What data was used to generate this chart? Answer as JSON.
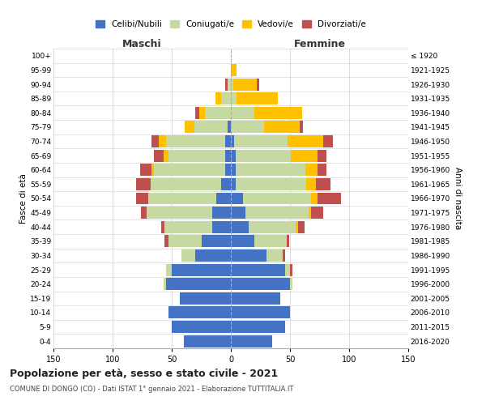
{
  "age_groups": [
    "0-4",
    "5-9",
    "10-14",
    "15-19",
    "20-24",
    "25-29",
    "30-34",
    "35-39",
    "40-44",
    "45-49",
    "50-54",
    "55-59",
    "60-64",
    "65-69",
    "70-74",
    "75-79",
    "80-84",
    "85-89",
    "90-94",
    "95-99",
    "100+"
  ],
  "birth_years": [
    "2016-2020",
    "2011-2015",
    "2006-2010",
    "2001-2005",
    "1996-2000",
    "1991-1995",
    "1986-1990",
    "1981-1985",
    "1976-1980",
    "1971-1975",
    "1966-1970",
    "1961-1965",
    "1956-1960",
    "1951-1955",
    "1946-1950",
    "1941-1945",
    "1936-1940",
    "1931-1935",
    "1926-1930",
    "1921-1925",
    "≤ 1920"
  ],
  "maschi": {
    "celibi": [
      40,
      50,
      53,
      43,
      55,
      50,
      30,
      25,
      16,
      16,
      12,
      8,
      5,
      5,
      5,
      3,
      0,
      0,
      0,
      0,
      0
    ],
    "coniugati": [
      0,
      0,
      0,
      0,
      2,
      5,
      12,
      28,
      40,
      55,
      58,
      60,
      60,
      48,
      50,
      28,
      22,
      8,
      3,
      0,
      0
    ],
    "vedovi": [
      0,
      0,
      0,
      0,
      0,
      0,
      0,
      0,
      0,
      0,
      0,
      0,
      2,
      4,
      6,
      8,
      5,
      5,
      0,
      0,
      0
    ],
    "divorziati": [
      0,
      0,
      0,
      0,
      0,
      0,
      0,
      3,
      3,
      5,
      10,
      12,
      10,
      8,
      6,
      0,
      3,
      0,
      2,
      0,
      0
    ]
  },
  "femmine": {
    "nubili": [
      35,
      46,
      50,
      42,
      50,
      46,
      30,
      20,
      15,
      12,
      10,
      4,
      4,
      4,
      3,
      0,
      0,
      0,
      0,
      0,
      0
    ],
    "coniugate": [
      0,
      0,
      0,
      0,
      2,
      4,
      14,
      27,
      40,
      54,
      58,
      60,
      59,
      47,
      45,
      28,
      20,
      5,
      2,
      0,
      0
    ],
    "vedove": [
      0,
      0,
      0,
      0,
      0,
      0,
      0,
      0,
      2,
      2,
      5,
      8,
      10,
      22,
      30,
      30,
      40,
      35,
      20,
      5,
      0
    ],
    "divorziate": [
      0,
      0,
      0,
      0,
      0,
      2,
      2,
      2,
      5,
      10,
      20,
      12,
      8,
      8,
      8,
      3,
      0,
      0,
      2,
      0,
      0
    ]
  },
  "colors": {
    "celibi": "#4472c4",
    "coniugati": "#c5d9a0",
    "vedovi": "#ffc000",
    "divorziati": "#c0504d"
  },
  "legend_labels": [
    "Celibi/Nubili",
    "Coniugati/e",
    "Vedovi/e",
    "Divorziati/e"
  ],
  "xlim": 150,
  "title": "Popolazione per età, sesso e stato civile - 2021",
  "subtitle": "COMUNE DI DONGO (CO) - Dati ISTAT 1° gennaio 2021 - Elaborazione TUTTITALIA.IT",
  "xlabel_left": "Maschi",
  "xlabel_right": "Femmine",
  "ylabel_left": "Fasce di età",
  "ylabel_right": "Anni di nascita"
}
